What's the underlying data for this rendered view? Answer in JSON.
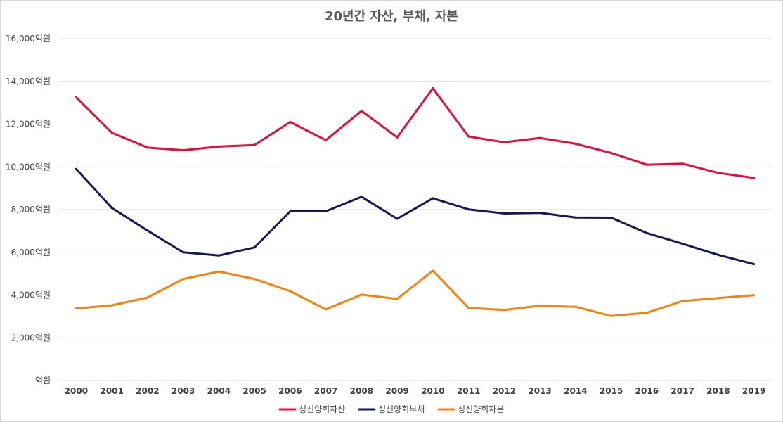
{
  "chart_data": {
    "type": "line",
    "title": "20년간 자산, 부채, 자본",
    "unit_suffix": "억원",
    "categories": [
      "2000",
      "2001",
      "2002",
      "2003",
      "2004",
      "2005",
      "2006",
      "2007",
      "2008",
      "2009",
      "2010",
      "2011",
      "2012",
      "2013",
      "2014",
      "2015",
      "2016",
      "2017",
      "2018",
      "2019"
    ],
    "y_ticks": [
      "억원",
      "2,000억원",
      "4,000억원",
      "6,000억원",
      "8,000억원",
      "10,000억원",
      "12,000억원",
      "14,000억원",
      "16,000억원"
    ],
    "ylim": [
      0,
      16000
    ],
    "y_step": 2000,
    "grid": true,
    "legend_position": "bottom",
    "series": [
      {
        "name": "성신양회자산",
        "color": "#E0103C",
        "values": [
          13250,
          11600,
          10900,
          10780,
          10950,
          11020,
          12100,
          11250,
          12620,
          11380,
          13680,
          11420,
          11150,
          11350,
          11080,
          10650,
          10100,
          10150,
          9720,
          9480
        ]
      },
      {
        "name": "성신양회부채",
        "color": "#1A1654",
        "values": [
          9900,
          8080,
          7020,
          6000,
          5850,
          6230,
          7920,
          7920,
          8600,
          7570,
          8530,
          8010,
          7820,
          7850,
          7630,
          7620,
          6900,
          6400,
          5880,
          5450
        ]
      },
      {
        "name": "성신양회자본",
        "color": "#F5820F",
        "values": [
          3370,
          3520,
          3880,
          4750,
          5100,
          4750,
          4180,
          3330,
          4020,
          3820,
          5140,
          3400,
          3300,
          3500,
          3450,
          3020,
          3170,
          3720,
          3860,
          3990
        ]
      }
    ]
  }
}
